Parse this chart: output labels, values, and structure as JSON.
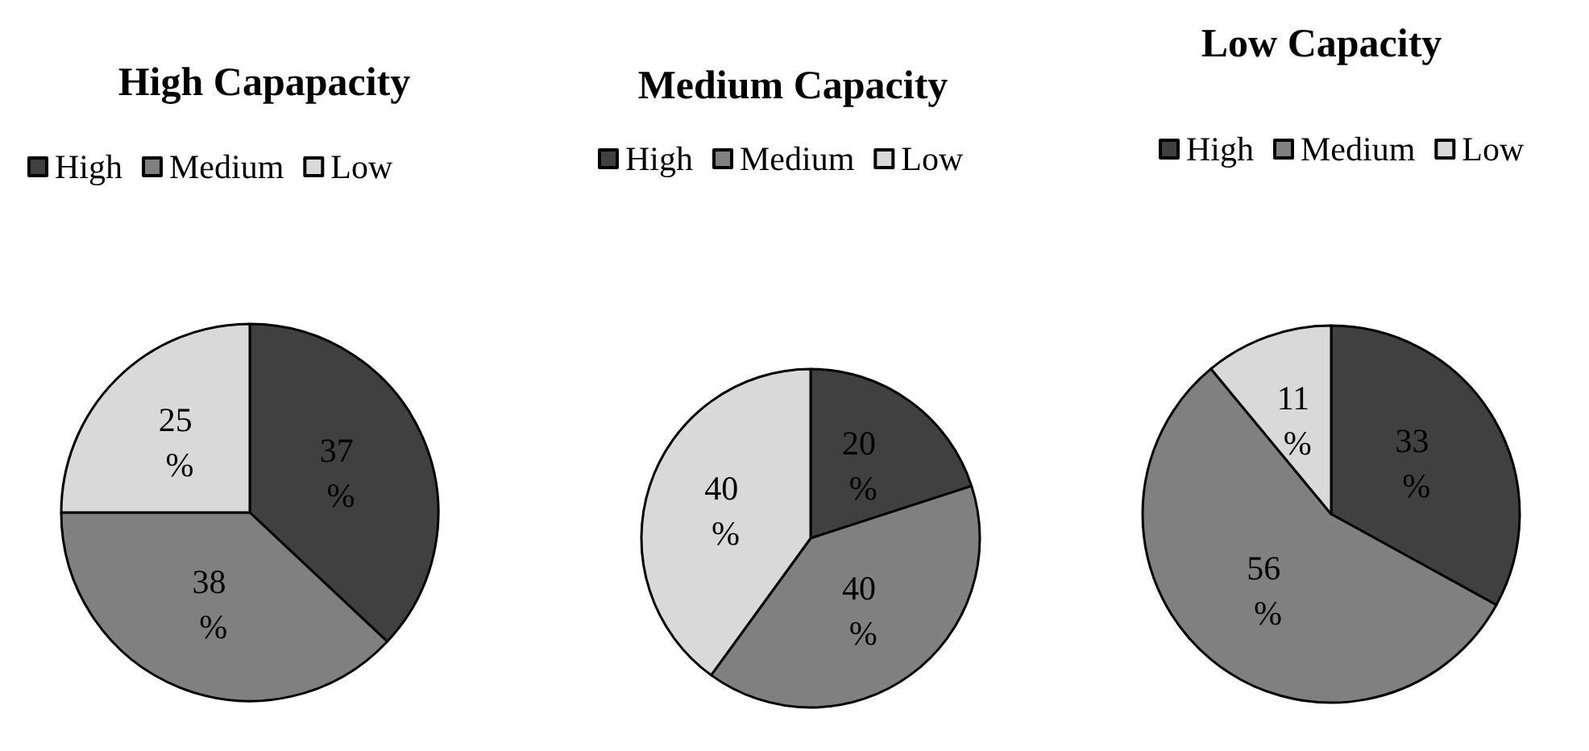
{
  "chart_data": [
    {
      "type": "pie",
      "title": "High Capapacity",
      "categories": [
        "High",
        "Medium",
        "Low"
      ],
      "values": [
        37,
        38,
        25
      ],
      "colors": [
        "#404040",
        "#808080",
        "#d9d9d9"
      ],
      "value_labels": [
        "37 %",
        "38 %",
        "25 %"
      ],
      "legend": "top left"
    },
    {
      "type": "pie",
      "title": "Medium Capacity",
      "categories": [
        "High",
        "Medium",
        "Low"
      ],
      "values": [
        20,
        40,
        40
      ],
      "colors": [
        "#404040",
        "#808080",
        "#d9d9d9"
      ],
      "value_labels": [
        "20 %",
        "40 %",
        "40 %"
      ],
      "legend": "top left"
    },
    {
      "type": "pie",
      "title": "Low Capacity",
      "categories": [
        "High",
        "Medium",
        "Low"
      ],
      "values": [
        33,
        56,
        11
      ],
      "colors": [
        "#404040",
        "#808080",
        "#d9d9d9"
      ],
      "value_labels": [
        "33 %",
        "56 %",
        "11 %"
      ],
      "legend": "top left"
    }
  ]
}
